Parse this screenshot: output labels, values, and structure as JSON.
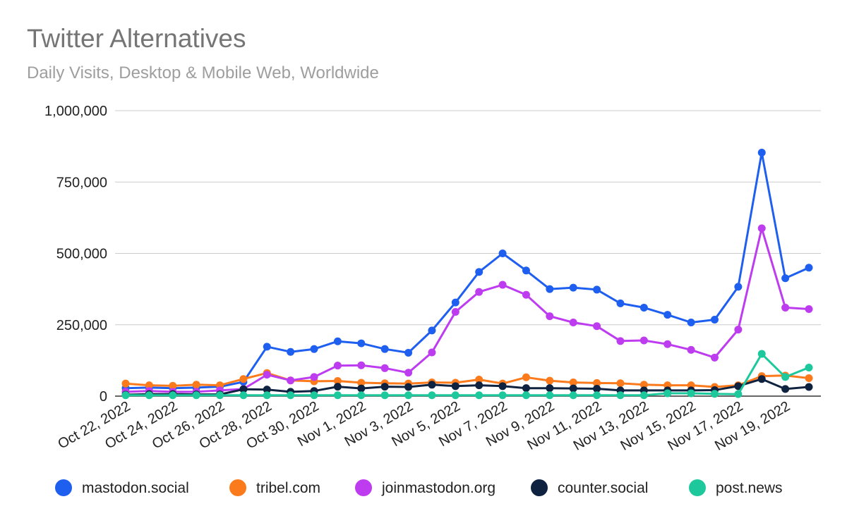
{
  "chart_data": {
    "type": "line",
    "title": "Twitter Alternatives",
    "subtitle": "Daily Visits, Desktop & Mobile Web, Worldwide",
    "xlabel": "",
    "ylabel": "",
    "ylim": [
      0,
      1000000
    ],
    "y_ticks": [
      "0",
      "250,000",
      "500,000",
      "750,000",
      "1,000,000"
    ],
    "y_tick_values": [
      0,
      250000,
      500000,
      750000,
      1000000
    ],
    "grid": true,
    "legend_position": "bottom",
    "x": [
      "Oct 22, 2022",
      "Oct 23, 2022",
      "Oct 24, 2022",
      "Oct 25, 2022",
      "Oct 26, 2022",
      "Oct 27, 2022",
      "Oct 28, 2022",
      "Oct 29, 2022",
      "Oct 30, 2022",
      "Oct 31, 2022",
      "Nov 1, 2022",
      "Nov 2, 2022",
      "Nov 3, 2022",
      "Nov 4, 2022",
      "Nov 5, 2022",
      "Nov 6, 2022",
      "Nov 7, 2022",
      "Nov 8, 2022",
      "Nov 9, 2022",
      "Nov 10, 2022",
      "Nov 11, 2022",
      "Nov 12, 2022",
      "Nov 13, 2022",
      "Nov 14, 2022",
      "Nov 15, 2022",
      "Nov 16, 2022",
      "Nov 17, 2022",
      "Nov 18, 2022",
      "Nov 19, 2022",
      "Nov 20, 2022"
    ],
    "x_tick_labels": [
      "Oct 22, 2022",
      "Oct 24, 2022",
      "Oct 26, 2022",
      "Oct 28, 2022",
      "Oct 30, 2022",
      "Nov 1, 2022",
      "Nov 3, 2022",
      "Nov 5, 2022",
      "Nov 7, 2022",
      "Nov 9, 2022",
      "Nov 11, 2022",
      "Nov 13, 2022",
      "Nov 15, 2022",
      "Nov 17, 2022",
      "Nov 19, 2022"
    ],
    "series": [
      {
        "name": "mastodon.social",
        "color": "#1f5ff0",
        "values": [
          28000,
          30000,
          28000,
          30000,
          33000,
          50000,
          173000,
          155000,
          165000,
          192000,
          185000,
          165000,
          152000,
          230000,
          328000,
          435000,
          500000,
          440000,
          375000,
          380000,
          373000,
          325000,
          310000,
          285000,
          258000,
          268000,
          383000,
          853000,
          413000,
          450000
        ]
      },
      {
        "name": "tribel.com",
        "color": "#fb7a1c",
        "values": [
          44000,
          38000,
          36000,
          40000,
          38000,
          60000,
          81000,
          55000,
          52000,
          53000,
          47000,
          45000,
          44000,
          48000,
          47000,
          58000,
          44000,
          66000,
          54000,
          48000,
          46000,
          45000,
          40000,
          38000,
          38000,
          32000,
          38000,
          70000,
          72000,
          63000
        ]
      },
      {
        "name": "joinmastodon.org",
        "color": "#be3cf0",
        "values": [
          15000,
          18000,
          15000,
          15000,
          20000,
          25000,
          75000,
          55000,
          67000,
          107000,
          108000,
          98000,
          82000,
          153000,
          295000,
          365000,
          390000,
          355000,
          280000,
          258000,
          245000,
          193000,
          195000,
          182000,
          162000,
          135000,
          233000,
          588000,
          310000,
          305000
        ]
      },
      {
        "name": "counter.social",
        "color": "#0f2340",
        "values": [
          5000,
          7000,
          7000,
          6000,
          6000,
          24000,
          23000,
          15000,
          18000,
          33000,
          27000,
          33000,
          32000,
          40000,
          35000,
          38000,
          35000,
          28000,
          28000,
          27000,
          26000,
          20000,
          20000,
          20000,
          20000,
          21000,
          35000,
          60000,
          25000,
          32000
        ]
      },
      {
        "name": "post.news",
        "color": "#1dc99c",
        "values": [
          3000,
          3000,
          3000,
          3000,
          3000,
          3000,
          3000,
          3000,
          3000,
          3000,
          3000,
          3000,
          3000,
          3000,
          3000,
          3000,
          3000,
          3000,
          3000,
          3000,
          3000,
          3000,
          3000,
          10000,
          10000,
          8000,
          7000,
          148000,
          67000,
          100000
        ]
      }
    ]
  }
}
